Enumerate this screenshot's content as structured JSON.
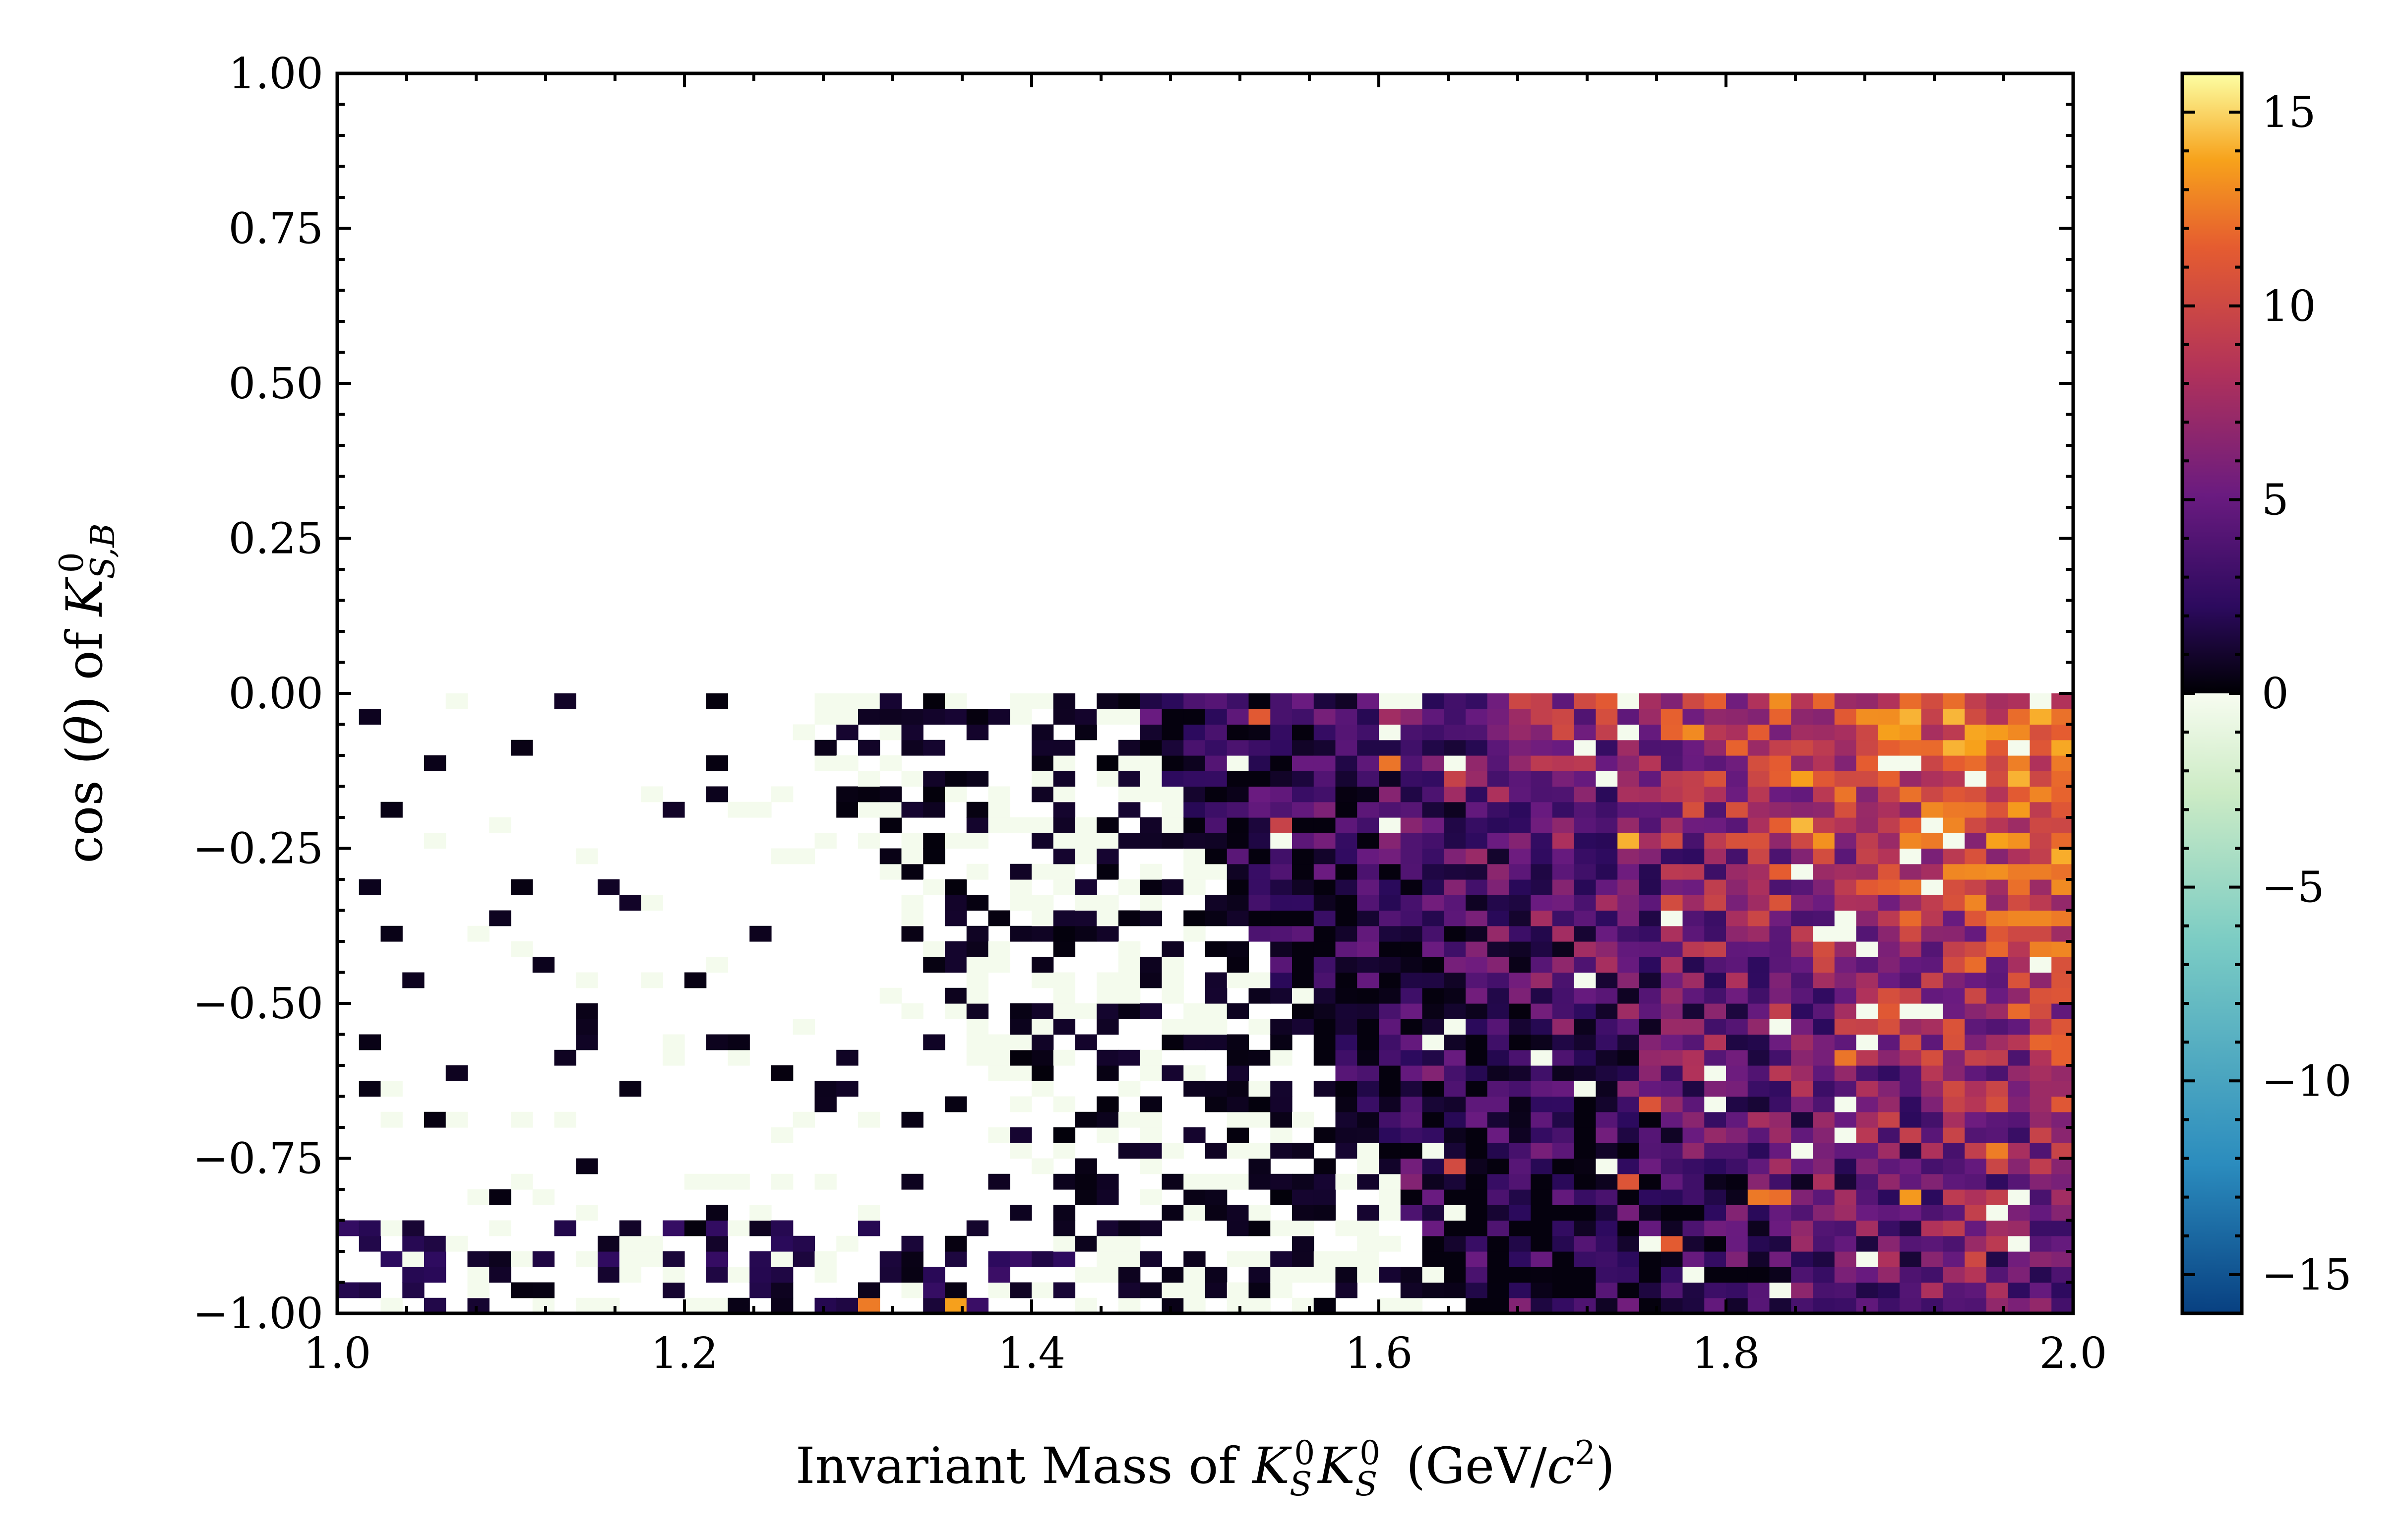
{
  "chart_data": {
    "type": "heatmap",
    "title": "",
    "xlabel": "Invariant Mass of K_S^0K_S^0 (GeV/c^2)",
    "ylabel": "cos(θ) of K_{S,B}^0",
    "xlim": [
      1.0,
      2.0
    ],
    "ylim": [
      -1.0,
      1.0
    ],
    "x_ticks": [
      1.0,
      1.2,
      1.4,
      1.6,
      1.8,
      2.0
    ],
    "x_tick_labels": [
      "1.0",
      "1.2",
      "1.4",
      "1.6",
      "1.8",
      "2.0"
    ],
    "y_ticks": [
      1.0,
      0.75,
      0.5,
      0.25,
      0.0,
      -0.25,
      -0.5,
      -0.75,
      -1.0
    ],
    "y_tick_labels": [
      "1.00",
      "0.75",
      "0.50",
      "0.25",
      "0.00",
      "−0.25",
      "−0.50",
      "−0.75",
      "−1.00"
    ],
    "x_bins": 80,
    "y_bins": 80,
    "populated_region": {
      "x": [
        1.0,
        2.0
      ],
      "y": [
        -1.0,
        0.0
      ]
    },
    "grid": false,
    "colorbar": {
      "min": -16,
      "max": 16,
      "ticks": [
        15,
        10,
        5,
        0,
        -5,
        -10,
        -15
      ],
      "tick_labels": [
        "15",
        "10",
        "5",
        "0",
        "−5",
        "−10",
        "−15"
      ],
      "colormap_positive": [
        "#000004",
        "#2c0a5e",
        "#6a1b80",
        "#b1325a",
        "#e55c30",
        "#f7a21b",
        "#fcffa4"
      ],
      "colormap_negative": [
        "#f7fcf0",
        "#ccebc5",
        "#7bccc4",
        "#2b8cbe",
        "#084081"
      ]
    }
  }
}
